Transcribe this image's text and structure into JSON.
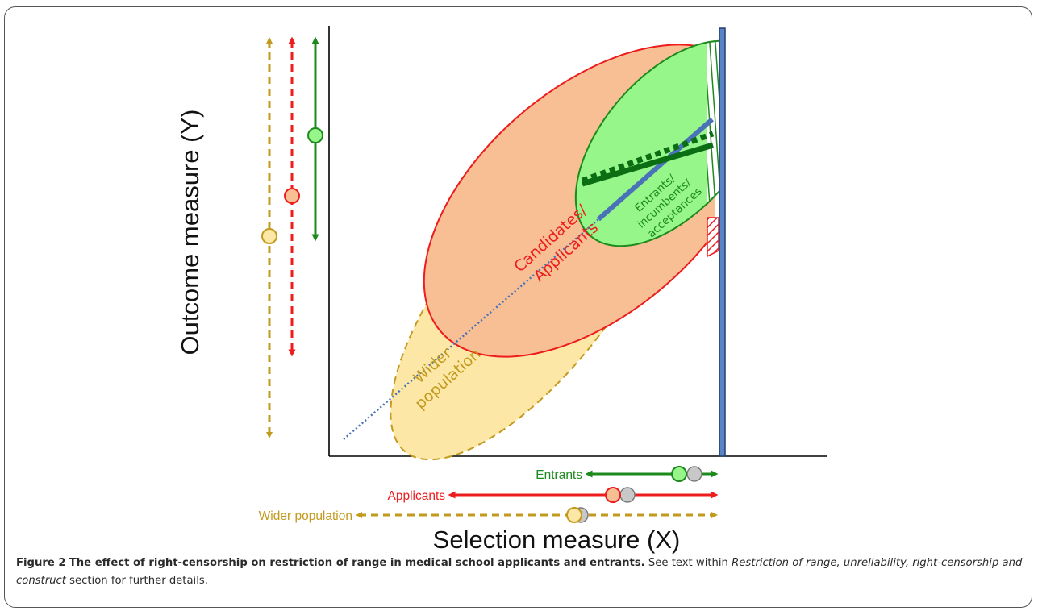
{
  "axes": {
    "y_label": "Outcome measure (Y)",
    "x_label": "Selection measure (X)"
  },
  "regions": {
    "wider": "Wider population",
    "wider_l1": "Wider",
    "wider_l2": "population",
    "applicants_l1": "Candidates/",
    "applicants_l2": "Applicants",
    "entrants_l1": "Entrants/",
    "entrants_l2": "incumbents/",
    "entrants_l3": "acceptances"
  },
  "range_labels": {
    "entrants": "Entrants",
    "applicants": "Applicants",
    "wider": "Wider population"
  },
  "colors": {
    "wider": "#c29a1e",
    "wider_fill": "#fde7a6",
    "applicants": "#ee1c1c",
    "applicants_fill": "#f7bf93",
    "entrants": "#1c8a1c",
    "entrants_fill": "#96f68a",
    "censor_bar": "#4a6fa8",
    "gray_marker": "#c8c8c8"
  },
  "caption": {
    "figure_num": "Figure 2",
    "title": "The effect of right-censorship on restriction of range in medical school applicants and entrants.",
    "text_pre": "See text within",
    "section": "Restriction of range, unreliability, right-censorship and construct",
    "text_post": "section for further details."
  }
}
